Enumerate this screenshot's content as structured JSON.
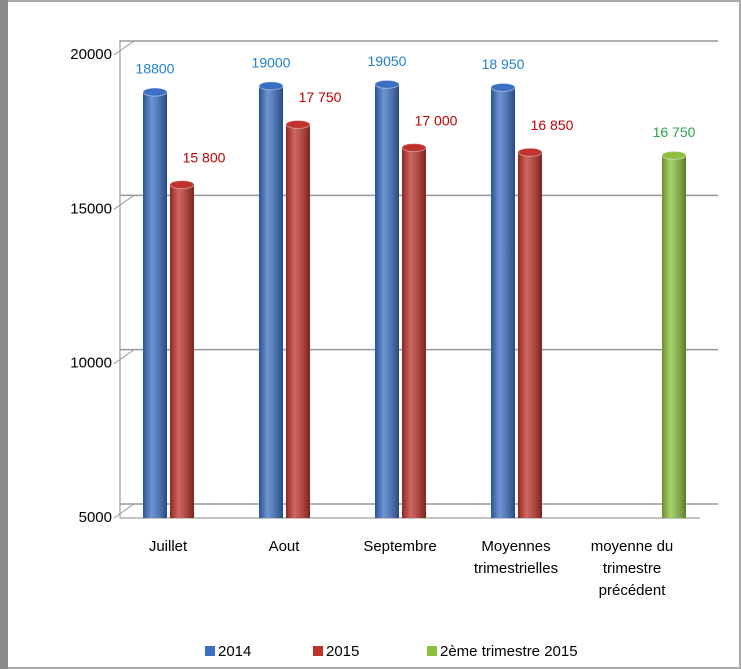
{
  "chart_data": {
    "type": "bar",
    "categories": [
      "Juillet",
      "Aout",
      "Septembre",
      "Moyennes trimestrielles",
      "moyenne du trimestre précédent"
    ],
    "series": [
      {
        "name": "2014",
        "color": "#3b6fc4",
        "label_color": "#1f7fd0",
        "values": [
          18800,
          19000,
          19050,
          18950,
          null
        ],
        "value_labels": [
          "18800",
          "19000",
          "19050",
          "18 950",
          null
        ]
      },
      {
        "name": "2015",
        "color": "#c0332c",
        "label_color": "#c00000",
        "values": [
          15800,
          17750,
          17000,
          16850,
          null
        ],
        "value_labels": [
          "15 800",
          "17 750",
          "17 000",
          "16 850",
          null
        ]
      },
      {
        "name": "2ème trimestre 2015",
        "color": "#8dbf3e",
        "label_color": "#2aa44a",
        "values": [
          null,
          null,
          null,
          null,
          16750
        ],
        "value_labels": [
          null,
          null,
          null,
          null,
          "16 750"
        ]
      }
    ],
    "ylim": [
      5000,
      20000
    ],
    "yticks": [
      5000,
      10000,
      15000,
      20000
    ],
    "grid": true
  }
}
